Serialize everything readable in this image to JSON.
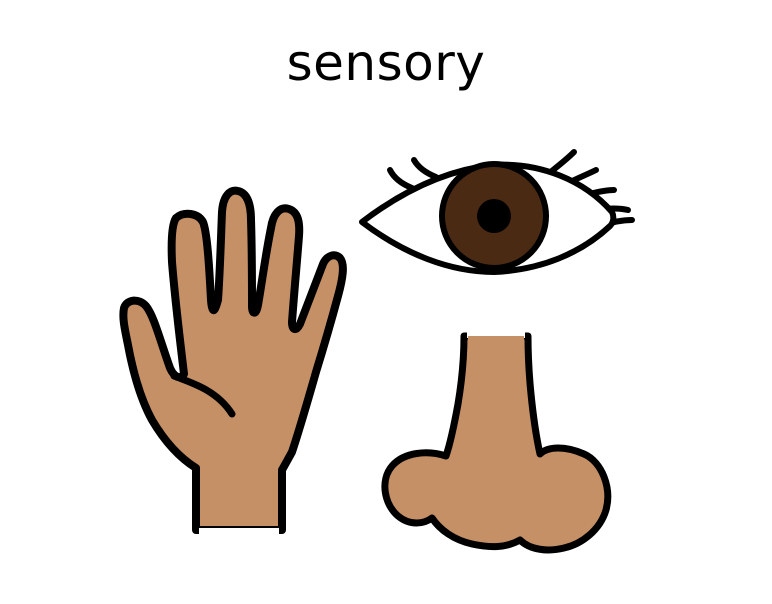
{
  "card": {
    "title": "sensory"
  },
  "icons": [
    "hand-icon",
    "eye-icon",
    "nose-icon"
  ],
  "colors": {
    "skin": "#c69066",
    "iris": "#4a2a12",
    "pupil": "#000000",
    "outline": "#000000",
    "background": "#ffffff"
  }
}
